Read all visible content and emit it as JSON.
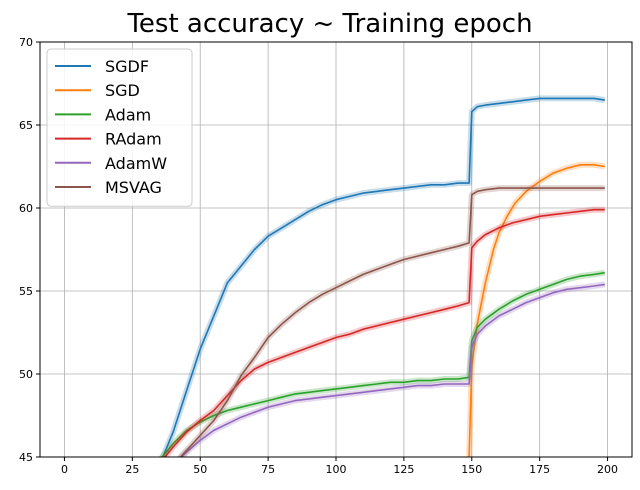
{
  "chart_data": {
    "type": "line",
    "title": "Test accuracy ~ Training epoch",
    "xlabel": "",
    "ylabel": "",
    "xlim": [
      -9,
      209
    ],
    "ylim": [
      45,
      70
    ],
    "xticks": [
      0,
      25,
      50,
      75,
      100,
      125,
      150,
      175,
      200
    ],
    "yticks": [
      45,
      50,
      55,
      60,
      65,
      70
    ],
    "grid": true,
    "legend_position": "top-left",
    "series": [
      {
        "name": "SGDF",
        "color": "#1f77b4",
        "points": [
          [
            35,
            44.5
          ],
          [
            40,
            46.5
          ],
          [
            45,
            49.0
          ],
          [
            50,
            51.5
          ],
          [
            55,
            53.5
          ],
          [
            60,
            55.5
          ],
          [
            65,
            56.5
          ],
          [
            70,
            57.5
          ],
          [
            75,
            58.3
          ],
          [
            80,
            58.8
          ],
          [
            85,
            59.3
          ],
          [
            90,
            59.8
          ],
          [
            95,
            60.2
          ],
          [
            100,
            60.5
          ],
          [
            105,
            60.7
          ],
          [
            110,
            60.9
          ],
          [
            115,
            61.0
          ],
          [
            120,
            61.1
          ],
          [
            125,
            61.2
          ],
          [
            130,
            61.3
          ],
          [
            135,
            61.4
          ],
          [
            140,
            61.4
          ],
          [
            145,
            61.5
          ],
          [
            149,
            61.5
          ],
          [
            150,
            65.8
          ],
          [
            152,
            66.1
          ],
          [
            155,
            66.2
          ],
          [
            160,
            66.3
          ],
          [
            165,
            66.4
          ],
          [
            170,
            66.5
          ],
          [
            175,
            66.6
          ],
          [
            180,
            66.6
          ],
          [
            185,
            66.6
          ],
          [
            190,
            66.6
          ],
          [
            195,
            66.6
          ],
          [
            199,
            66.5
          ]
        ]
      },
      {
        "name": "SGD",
        "color": "#ff7f0e",
        "points": [
          [
            149,
            45.0
          ],
          [
            150,
            50.5
          ],
          [
            152,
            53.0
          ],
          [
            155,
            55.5
          ],
          [
            158,
            57.5
          ],
          [
            160,
            58.5
          ],
          [
            163,
            59.5
          ],
          [
            166,
            60.3
          ],
          [
            170,
            61.0
          ],
          [
            175,
            61.6
          ],
          [
            180,
            62.1
          ],
          [
            185,
            62.4
          ],
          [
            190,
            62.6
          ],
          [
            195,
            62.6
          ],
          [
            199,
            62.5
          ]
        ]
      },
      {
        "name": "Adam",
        "color": "#2ca02c",
        "points": [
          [
            35,
            44.8
          ],
          [
            40,
            45.8
          ],
          [
            45,
            46.6
          ],
          [
            50,
            47.1
          ],
          [
            55,
            47.5
          ],
          [
            60,
            47.8
          ],
          [
            65,
            48.0
          ],
          [
            70,
            48.2
          ],
          [
            75,
            48.4
          ],
          [
            80,
            48.6
          ],
          [
            85,
            48.8
          ],
          [
            90,
            48.9
          ],
          [
            95,
            49.0
          ],
          [
            100,
            49.1
          ],
          [
            105,
            49.2
          ],
          [
            110,
            49.3
          ],
          [
            115,
            49.4
          ],
          [
            120,
            49.5
          ],
          [
            125,
            49.5
          ],
          [
            130,
            49.6
          ],
          [
            135,
            49.6
          ],
          [
            140,
            49.7
          ],
          [
            145,
            49.7
          ],
          [
            149,
            49.8
          ],
          [
            150,
            52.0
          ],
          [
            152,
            52.8
          ],
          [
            155,
            53.3
          ],
          [
            160,
            53.9
          ],
          [
            165,
            54.4
          ],
          [
            170,
            54.8
          ],
          [
            175,
            55.1
          ],
          [
            180,
            55.4
          ],
          [
            185,
            55.7
          ],
          [
            190,
            55.9
          ],
          [
            195,
            56.0
          ],
          [
            199,
            56.1
          ]
        ]
      },
      {
        "name": "RAdam",
        "color": "#d62728",
        "points": [
          [
            35,
            44.6
          ],
          [
            40,
            45.6
          ],
          [
            45,
            46.5
          ],
          [
            50,
            47.2
          ],
          [
            55,
            47.8
          ],
          [
            60,
            48.7
          ],
          [
            65,
            49.6
          ],
          [
            70,
            50.3
          ],
          [
            75,
            50.7
          ],
          [
            80,
            51.0
          ],
          [
            85,
            51.3
          ],
          [
            90,
            51.6
          ],
          [
            95,
            51.9
          ],
          [
            100,
            52.2
          ],
          [
            105,
            52.4
          ],
          [
            110,
            52.7
          ],
          [
            115,
            52.9
          ],
          [
            120,
            53.1
          ],
          [
            125,
            53.3
          ],
          [
            130,
            53.5
          ],
          [
            135,
            53.7
          ],
          [
            140,
            53.9
          ],
          [
            145,
            54.1
          ],
          [
            149,
            54.3
          ],
          [
            150,
            57.6
          ],
          [
            152,
            58.0
          ],
          [
            155,
            58.4
          ],
          [
            160,
            58.8
          ],
          [
            165,
            59.1
          ],
          [
            170,
            59.3
          ],
          [
            175,
            59.5
          ],
          [
            180,
            59.6
          ],
          [
            185,
            59.7
          ],
          [
            190,
            59.8
          ],
          [
            195,
            59.9
          ],
          [
            199,
            59.9
          ]
        ]
      },
      {
        "name": "AdamW",
        "color": "#9467bd",
        "points": [
          [
            40,
            44.5
          ],
          [
            45,
            45.3
          ],
          [
            50,
            46.0
          ],
          [
            55,
            46.6
          ],
          [
            60,
            47.0
          ],
          [
            65,
            47.4
          ],
          [
            70,
            47.7
          ],
          [
            75,
            48.0
          ],
          [
            80,
            48.2
          ],
          [
            85,
            48.4
          ],
          [
            90,
            48.5
          ],
          [
            95,
            48.6
          ],
          [
            100,
            48.7
          ],
          [
            105,
            48.8
          ],
          [
            110,
            48.9
          ],
          [
            115,
            49.0
          ],
          [
            120,
            49.1
          ],
          [
            125,
            49.2
          ],
          [
            130,
            49.3
          ],
          [
            135,
            49.3
          ],
          [
            140,
            49.4
          ],
          [
            145,
            49.4
          ],
          [
            149,
            49.4
          ],
          [
            150,
            51.6
          ],
          [
            152,
            52.4
          ],
          [
            155,
            52.9
          ],
          [
            160,
            53.5
          ],
          [
            165,
            53.9
          ],
          [
            170,
            54.3
          ],
          [
            175,
            54.6
          ],
          [
            180,
            54.9
          ],
          [
            185,
            55.1
          ],
          [
            190,
            55.2
          ],
          [
            195,
            55.3
          ],
          [
            199,
            55.4
          ]
        ]
      },
      {
        "name": "MSVAG",
        "color": "#8c564b",
        "points": [
          [
            40,
            44.5
          ],
          [
            45,
            45.4
          ],
          [
            50,
            46.3
          ],
          [
            55,
            47.2
          ],
          [
            60,
            48.4
          ],
          [
            65,
            49.9
          ],
          [
            70,
            51.0
          ],
          [
            75,
            52.2
          ],
          [
            80,
            53.0
          ],
          [
            85,
            53.7
          ],
          [
            90,
            54.3
          ],
          [
            95,
            54.8
          ],
          [
            100,
            55.2
          ],
          [
            105,
            55.6
          ],
          [
            110,
            56.0
          ],
          [
            115,
            56.3
          ],
          [
            120,
            56.6
          ],
          [
            125,
            56.9
          ],
          [
            130,
            57.1
          ],
          [
            135,
            57.3
          ],
          [
            140,
            57.5
          ],
          [
            145,
            57.7
          ],
          [
            149,
            57.9
          ],
          [
            150,
            60.8
          ],
          [
            152,
            61.0
          ],
          [
            155,
            61.1
          ],
          [
            160,
            61.2
          ],
          [
            165,
            61.2
          ],
          [
            170,
            61.2
          ],
          [
            175,
            61.2
          ],
          [
            180,
            61.2
          ],
          [
            185,
            61.2
          ],
          [
            190,
            61.2
          ],
          [
            195,
            61.2
          ],
          [
            199,
            61.2
          ]
        ]
      }
    ]
  }
}
